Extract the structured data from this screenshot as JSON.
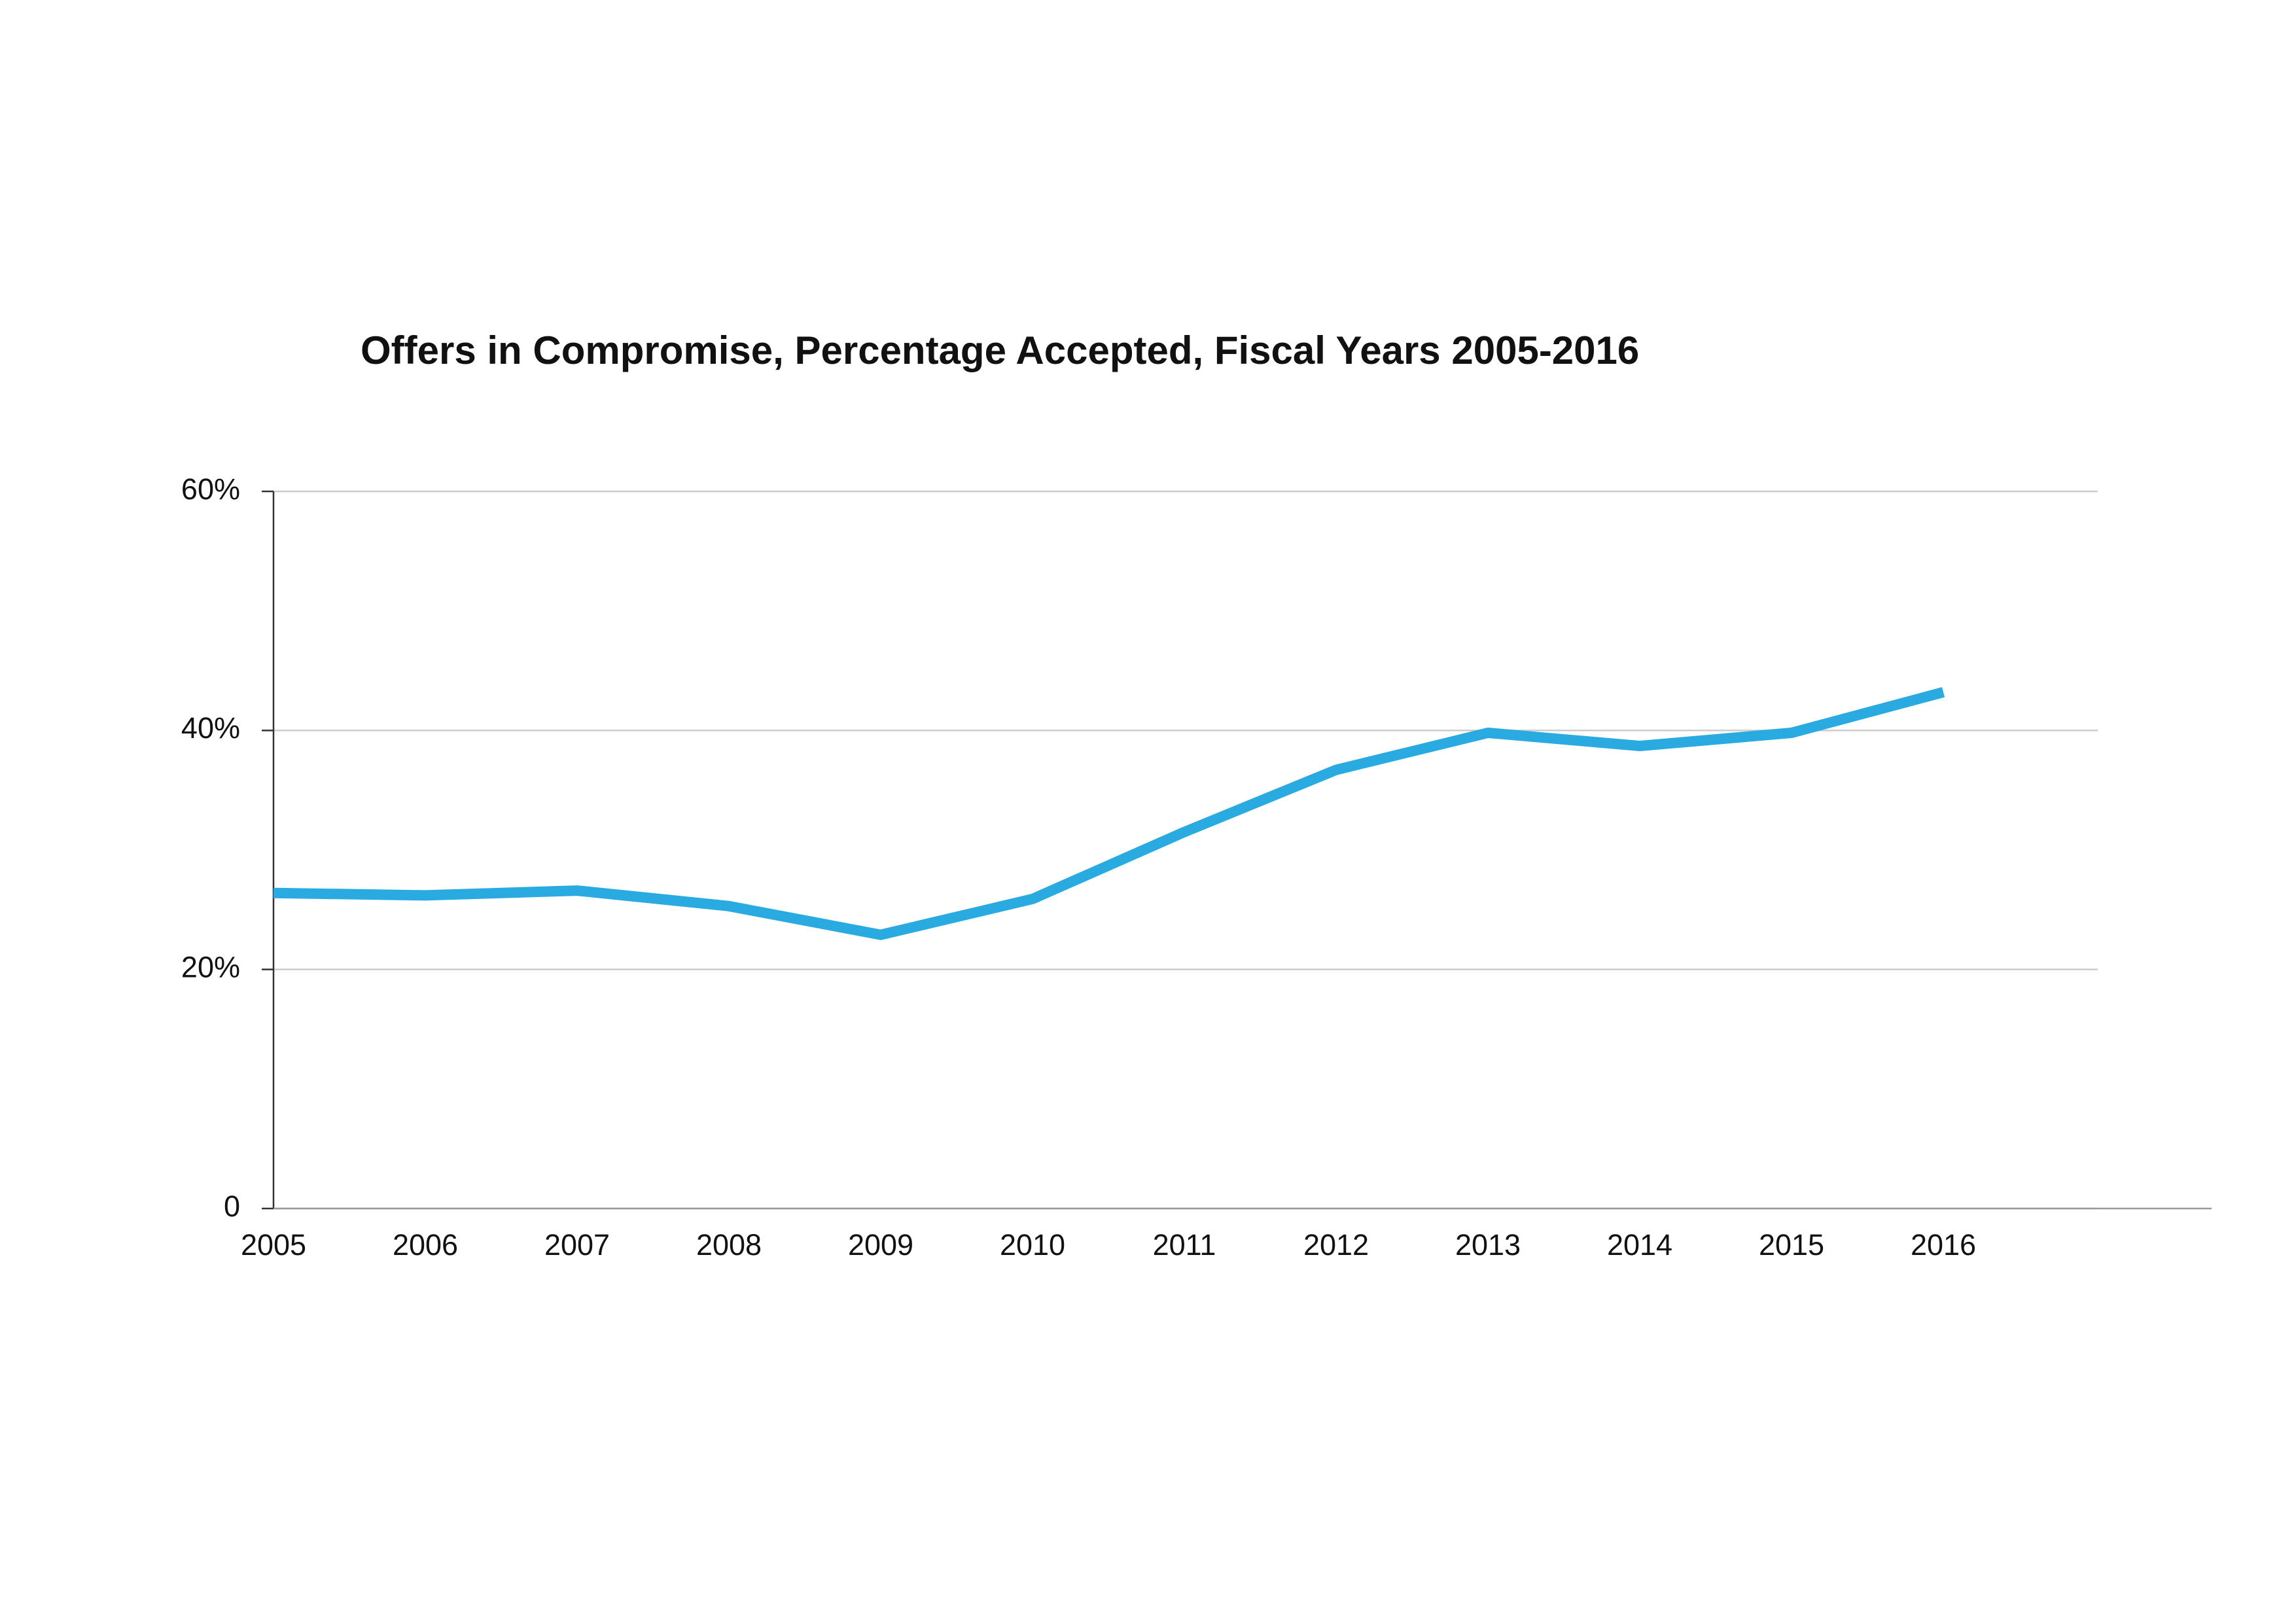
{
  "chart_data": {
    "type": "line",
    "title": "Offers in Compromise, Percentage Accepted, Fiscal Years 2005-2016",
    "categories": [
      "2005",
      "2006",
      "2007",
      "2008",
      "2009",
      "2010",
      "2011",
      "2012",
      "2013",
      "2014",
      "2015",
      "2016"
    ],
    "series": [
      {
        "color": "#29abe2",
        "values": [
          26.4,
          26.2,
          26.6,
          25.3,
          22.9,
          25.9,
          31.5,
          36.7,
          39.8,
          38.7,
          39.8,
          43.2
        ]
      }
    ],
    "ylim": [
      0,
      60
    ],
    "yticks": [
      0,
      {
        "value": 20,
        "label": "20%"
      },
      {
        "value": 40,
        "label": "40%"
      },
      {
        "value": 60,
        "label": "60%"
      }
    ],
    "grid": true
  }
}
